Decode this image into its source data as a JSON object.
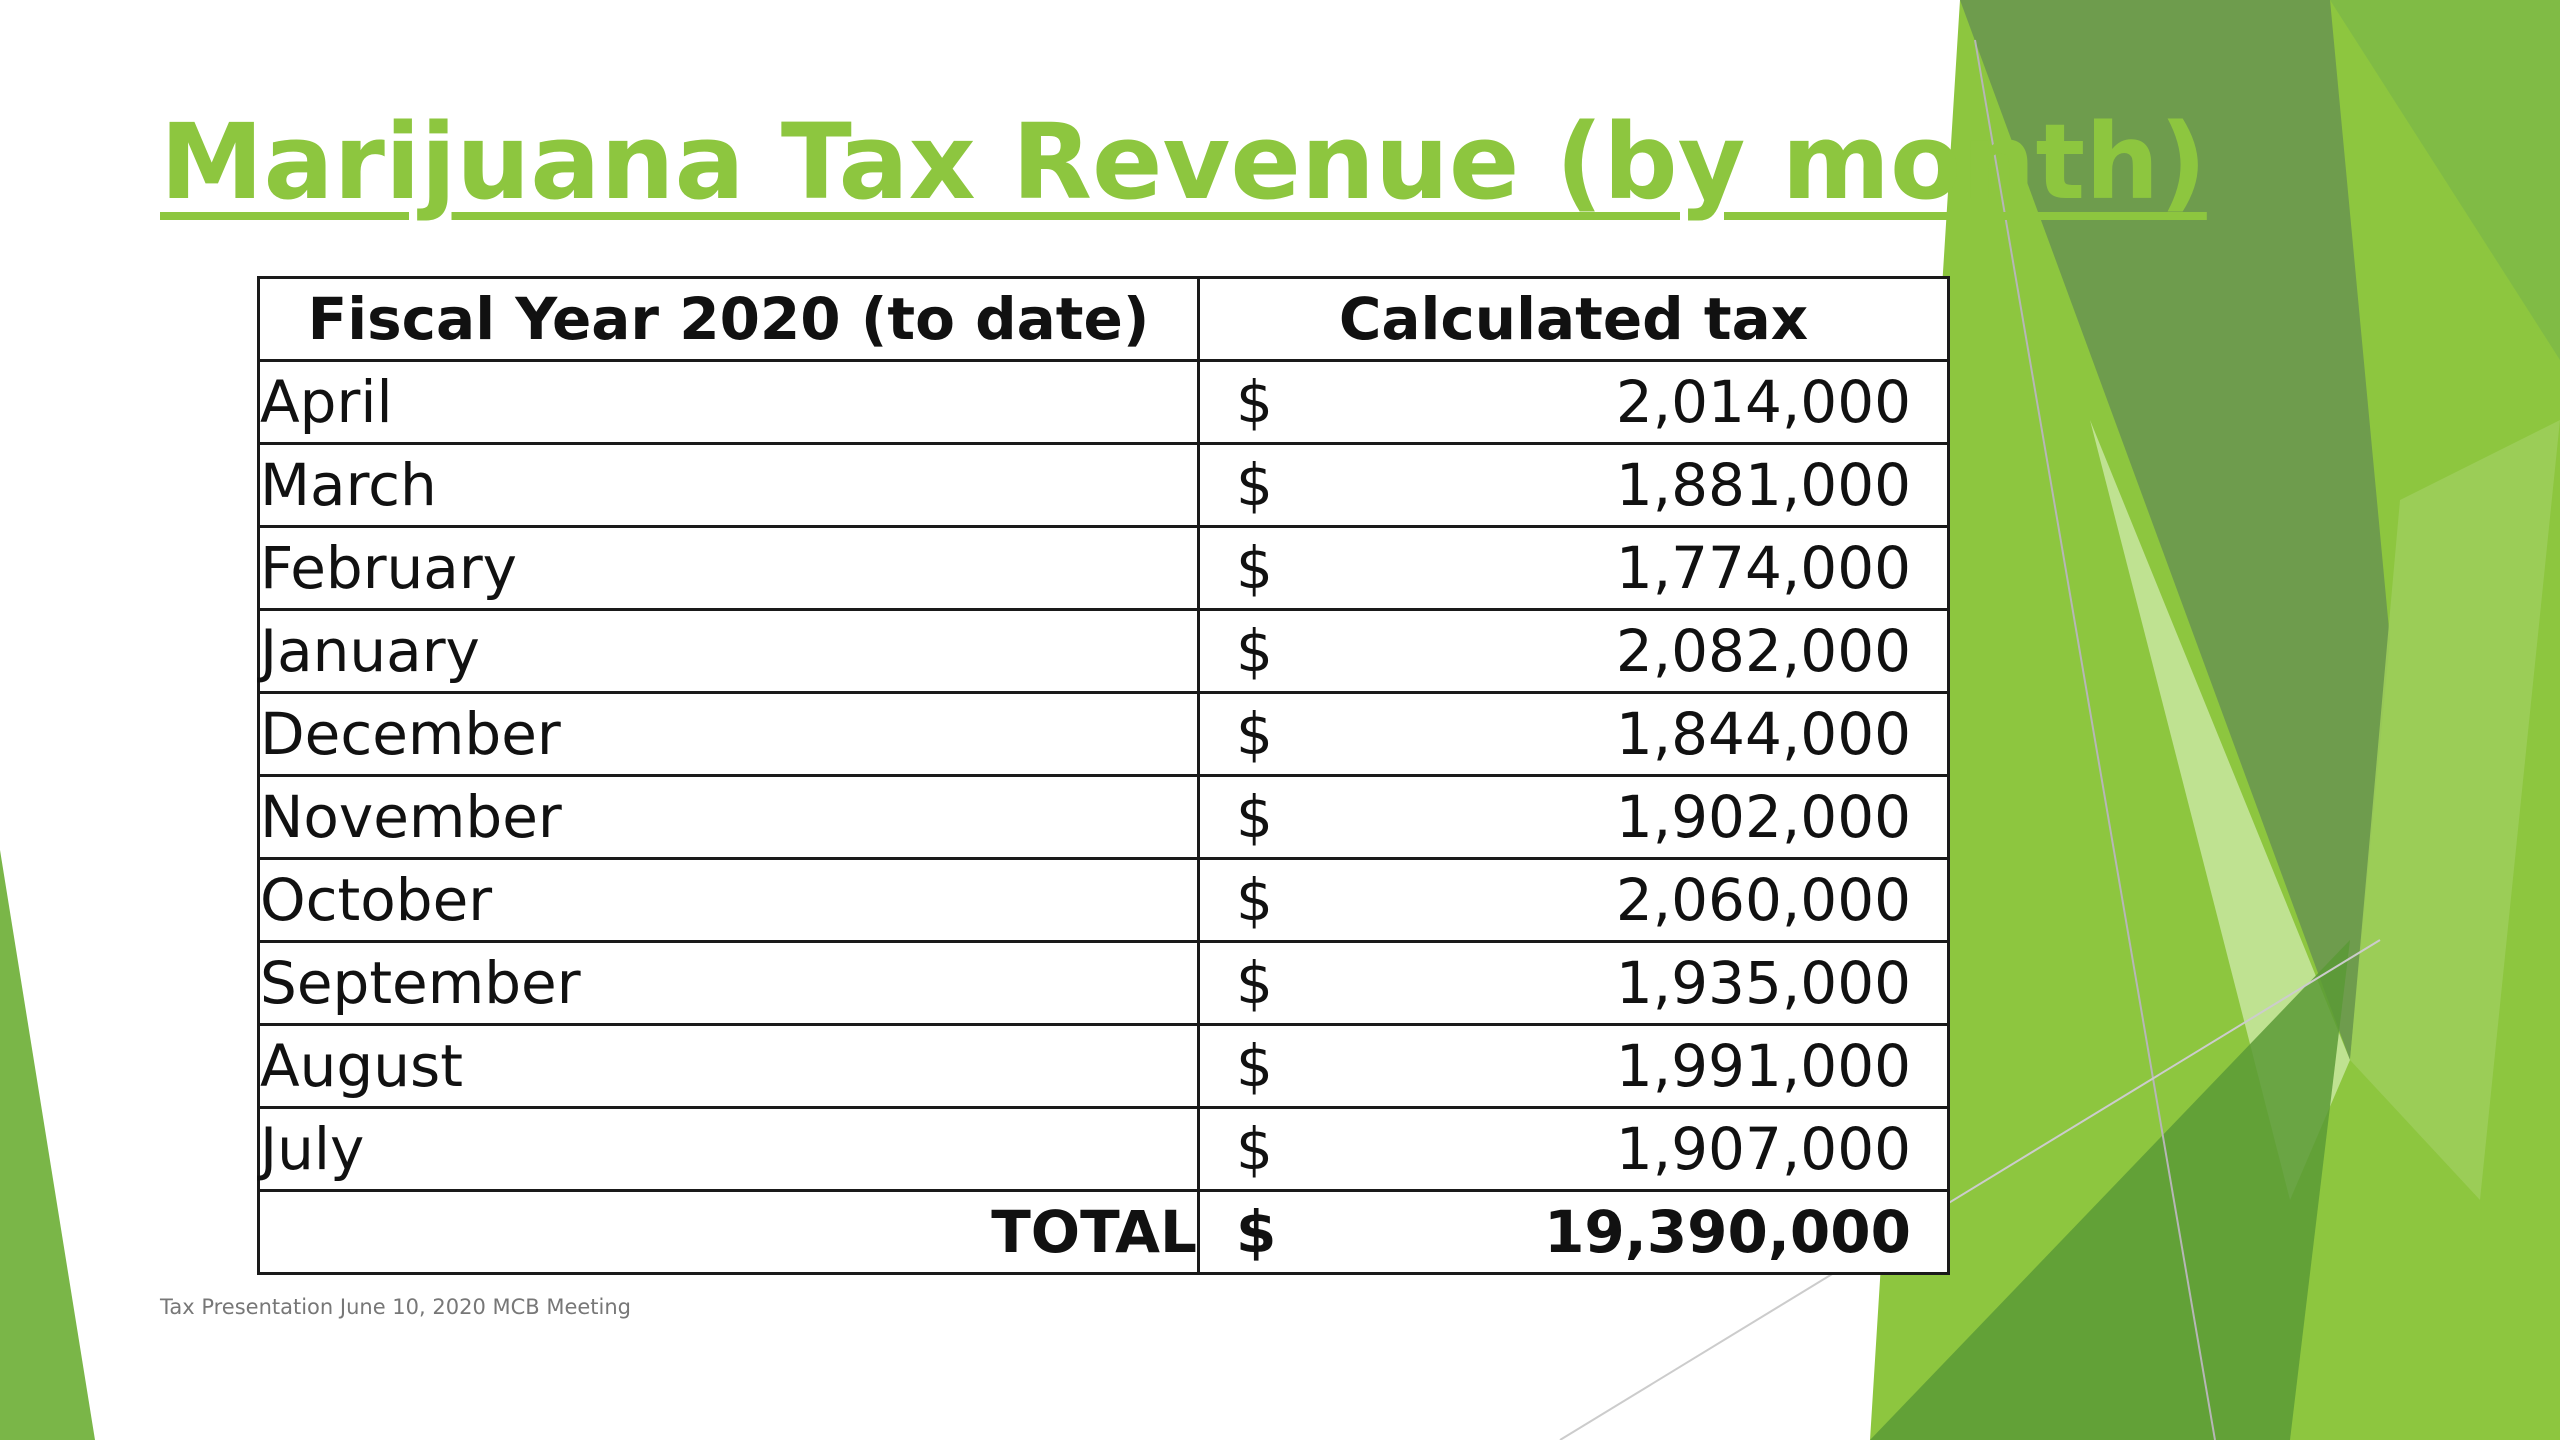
{
  "slide": {
    "title": "Marijuana Tax Revenue (by month)",
    "footer": "Tax Presentation June 10, 2020 MCB Meeting"
  },
  "colors": {
    "title": "#8dc63f",
    "accent_dark": "#6e9c4d",
    "accent_mid": "#7ab648",
    "accent_light": "#c8e6a0"
  },
  "table": {
    "headers": [
      "Fiscal Year 2020 (to date)",
      "Calculated tax"
    ],
    "rows": [
      {
        "month": "April",
        "currency": "$",
        "amount": "2,014,000"
      },
      {
        "month": "March",
        "currency": "$",
        "amount": "1,881,000"
      },
      {
        "month": "February",
        "currency": "$",
        "amount": "1,774,000"
      },
      {
        "month": "January",
        "currency": "$",
        "amount": "2,082,000"
      },
      {
        "month": "December",
        "currency": "$",
        "amount": "1,844,000"
      },
      {
        "month": "November",
        "currency": "$",
        "amount": "1,902,000"
      },
      {
        "month": "October",
        "currency": "$",
        "amount": "2,060,000"
      },
      {
        "month": "September",
        "currency": "$",
        "amount": "1,935,000"
      },
      {
        "month": "August",
        "currency": "$",
        "amount": "1,991,000"
      },
      {
        "month": "July",
        "currency": "$",
        "amount": "1,907,000"
      }
    ],
    "total": {
      "label": "TOTAL",
      "currency": "$",
      "amount": "19,390,000"
    }
  }
}
